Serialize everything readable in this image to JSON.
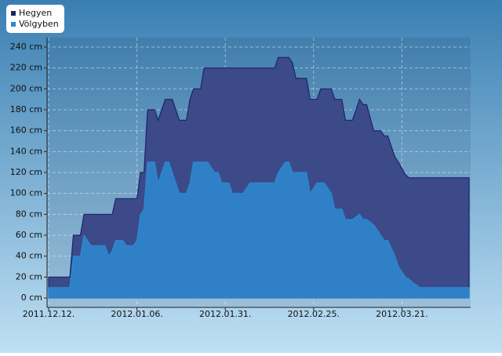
{
  "chart_data": {
    "type": "area",
    "x": [
      "2011.12.12.",
      "2011.12.18.",
      "2011.12.19.",
      "2011.12.21.",
      "2011.12.22.",
      "2011.12.24.",
      "2011.12.28.",
      "2011.12.29.",
      "2011.12.30.",
      "2011.12.31.",
      "2012.01.02.",
      "2012.01.03.",
      "2012.01.05.",
      "2012.01.06.",
      "2012.01.07.",
      "2012.01.08.",
      "2012.01.09.",
      "2012.01.11.",
      "2012.01.12.",
      "2012.01.14.",
      "2012.01.15.",
      "2012.01.16.",
      "2012.01.18.",
      "2012.01.20.",
      "2012.01.21.",
      "2012.01.22.",
      "2012.01.24.",
      "2012.01.25.",
      "2012.01.26.",
      "2012.01.28.",
      "2012.01.29.",
      "2012.01.30.",
      "2012.02.01.",
      "2012.02.02.",
      "2012.02.05.",
      "2012.02.07.",
      "2012.02.14.",
      "2012.02.15.",
      "2012.02.17.",
      "2012.02.18.",
      "2012.02.19.",
      "2012.02.20.",
      "2012.02.23.",
      "2012.02.24.",
      "2012.02.26.",
      "2012.02.27.",
      "2012.02.28.",
      "2012.03.01.",
      "2012.03.02.",
      "2012.03.04.",
      "2012.03.05.",
      "2012.03.07.",
      "2012.03.09.",
      "2012.03.10.",
      "2012.03.11.",
      "2012.03.13.",
      "2012.03.15.",
      "2012.03.16.",
      "2012.03.17.",
      "2012.03.19.",
      "2012.03.20.",
      "2012.03.22.",
      "2012.03.23.",
      "2012.03.24.",
      "2012.03.26.",
      "2012.04.09."
    ],
    "series": [
      {
        "name": "Hegyen",
        "color": "#1a2466",
        "fill": "#3c4a8a",
        "values": [
          20,
          20,
          60,
          60,
          80,
          80,
          80,
          80,
          80,
          95,
          95,
          95,
          95,
          95,
          120,
          120,
          180,
          180,
          170,
          190,
          190,
          190,
          170,
          170,
          190,
          200,
          200,
          220,
          220,
          220,
          220,
          220,
          220,
          220,
          220,
          220,
          220,
          230,
          230,
          230,
          225,
          210,
          210,
          190,
          190,
          200,
          200,
          200,
          190,
          190,
          170,
          170,
          190,
          185,
          185,
          160,
          160,
          155,
          155,
          135,
          130,
          118,
          115,
          115,
          115,
          115
        ]
      },
      {
        "name": "Völgyben",
        "color": "#2a8ad0",
        "fill": "#2f80c6",
        "values": [
          10,
          10,
          40,
          40,
          60,
          50,
          50,
          40,
          45,
          55,
          55,
          50,
          50,
          55,
          80,
          85,
          130,
          130,
          110,
          130,
          130,
          120,
          100,
          100,
          110,
          130,
          130,
          130,
          130,
          120,
          120,
          110,
          110,
          100,
          100,
          110,
          110,
          120,
          130,
          130,
          120,
          120,
          120,
          100,
          110,
          110,
          110,
          100,
          85,
          85,
          75,
          75,
          80,
          75,
          75,
          70,
          60,
          55,
          55,
          40,
          30,
          20,
          18,
          15,
          10,
          10
        ]
      }
    ],
    "xlim": [
      "2011.12.12.",
      "2012.04.09."
    ],
    "xticks": [
      "2011.12.12.",
      "2012.01.06.",
      "2012.01.31.",
      "2012.02.25.",
      "2012.03.21."
    ],
    "ylim": [
      -9,
      249
    ],
    "yticks": [
      {
        "value": 0,
        "label": "0 cm"
      },
      {
        "value": 20,
        "label": "20 cm"
      },
      {
        "value": 40,
        "label": "40 cm"
      },
      {
        "value": 60,
        "label": "60 cm"
      },
      {
        "value": 80,
        "label": "80 cm"
      },
      {
        "value": 100,
        "label": "100 cm"
      },
      {
        "value": 120,
        "label": "120 cm"
      },
      {
        "value": 140,
        "label": "140 cm"
      },
      {
        "value": 160,
        "label": "160 cm"
      },
      {
        "value": 180,
        "label": "180 cm"
      },
      {
        "value": 200,
        "label": "200 cm"
      },
      {
        "value": 220,
        "label": "220 cm"
      },
      {
        "value": 240,
        "label": "240 cm"
      }
    ],
    "grid": true
  }
}
